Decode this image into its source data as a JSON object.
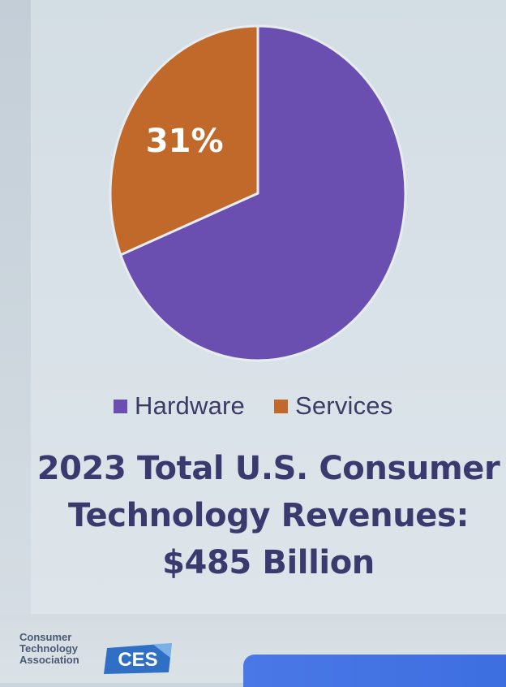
{
  "chart_data": {
    "type": "pie",
    "series": [
      {
        "name": "Hardware",
        "value": 69,
        "color": "#6a4fb0"
      },
      {
        "name": "Services",
        "value": 31,
        "color": "#c0692a"
      }
    ],
    "data_labels": [
      {
        "series": "Services",
        "text": "31%"
      }
    ],
    "legend": {
      "placement": "bottom",
      "items": [
        "Hardware",
        "Services"
      ]
    },
    "title_lines": [
      "2023 Total U.S. Consumer",
      "Technology Revenues:",
      "$485 Billion"
    ]
  },
  "legend": {
    "hardware_label": "Hardware",
    "services_label": "Services",
    "hardware_color": "#6a4fb0",
    "services_color": "#c0692a"
  },
  "title": {
    "line1": "2023 Total U.S. Consumer",
    "line2": "Technology Revenues:",
    "line3": "$485 Billion"
  },
  "footer": {
    "org_logo_line1": "Consumer",
    "org_logo_line2": "Technology",
    "org_logo_line3": "Association",
    "ces_logo_text": "CES"
  }
}
